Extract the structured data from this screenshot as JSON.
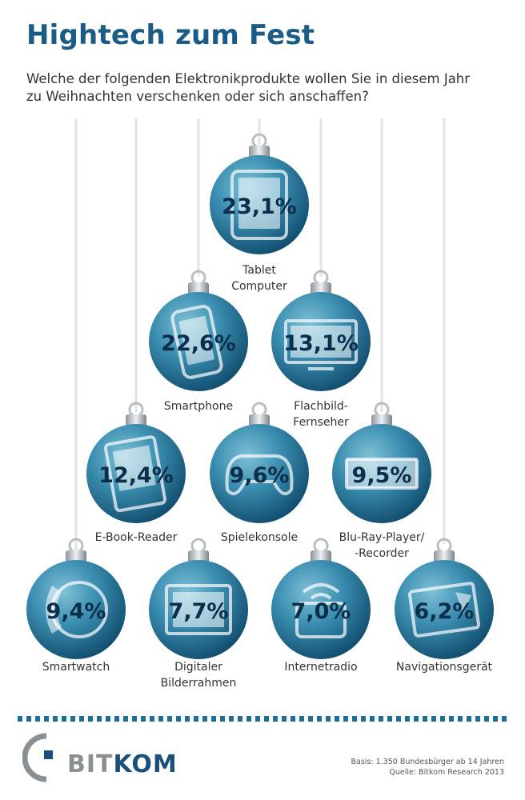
{
  "header": {
    "title": "Hightech zum Fest",
    "subtitle_line1": "Welche der folgenden Elektronikprodukte wollen Sie in diesem Jahr",
    "subtitle_line2": "zu Weihnachten verschenken oder sich anschaffen?"
  },
  "colors": {
    "title": "#1a5c86",
    "ornament_light": "#7fc0d6",
    "ornament_mid": "#3a8db0",
    "ornament_dark": "#0d4767",
    "value_text": "#0b2f4a",
    "string": "#e3e3e3"
  },
  "chart_data": {
    "type": "bar",
    "unit": "%",
    "categories": [
      "Tablet Computer",
      "Smartphone",
      "Flachbild-Fernseher",
      "E-Book-Reader",
      "Spielekonsole",
      "Blu-Ray-Player/-Recorder",
      "Smartwatch",
      "Digitaler Bilderrahmen",
      "Internetradio",
      "Navigationsgerät"
    ],
    "values": [
      23.1,
      22.6,
      13.1,
      12.4,
      9.6,
      9.5,
      9.4,
      7.7,
      7.0,
      6.2
    ],
    "value_labels": [
      "23,1%",
      "22,6%",
      "13,1%",
      "12,4%",
      "9,6%",
      "9,5%",
      "9,4%",
      "7,7%",
      "7,0%",
      "6,2%"
    ],
    "label_lines": [
      [
        "Tablet",
        "Computer"
      ],
      [
        "Smartphone"
      ],
      [
        "Flachbild-",
        "Fernseher"
      ],
      [
        "E-Book-Reader"
      ],
      [
        "Spielekonsole"
      ],
      [
        "Blu-Ray-Player/",
        "-Recorder"
      ],
      [
        "Smartwatch"
      ],
      [
        "Digitaler",
        "Bilderrahmen"
      ],
      [
        "Internetradio"
      ],
      [
        "Navigationsgerät"
      ]
    ],
    "icons": [
      "tablet-icon",
      "smartphone-icon",
      "flat-tv-icon",
      "ebook-reader-icon",
      "gamepad-icon",
      "bluray-player-icon",
      "smartwatch-icon",
      "picture-frame-icon",
      "radio-icon",
      "navigation-device-icon"
    ]
  },
  "footer": {
    "logo_part1": "BIT",
    "logo_part2": "KOM",
    "source_line1": "Basis: 1.350 Bundesbürger ab 14 Jahren",
    "source_line2": "Quelle: Bitkom Research 2013"
  }
}
